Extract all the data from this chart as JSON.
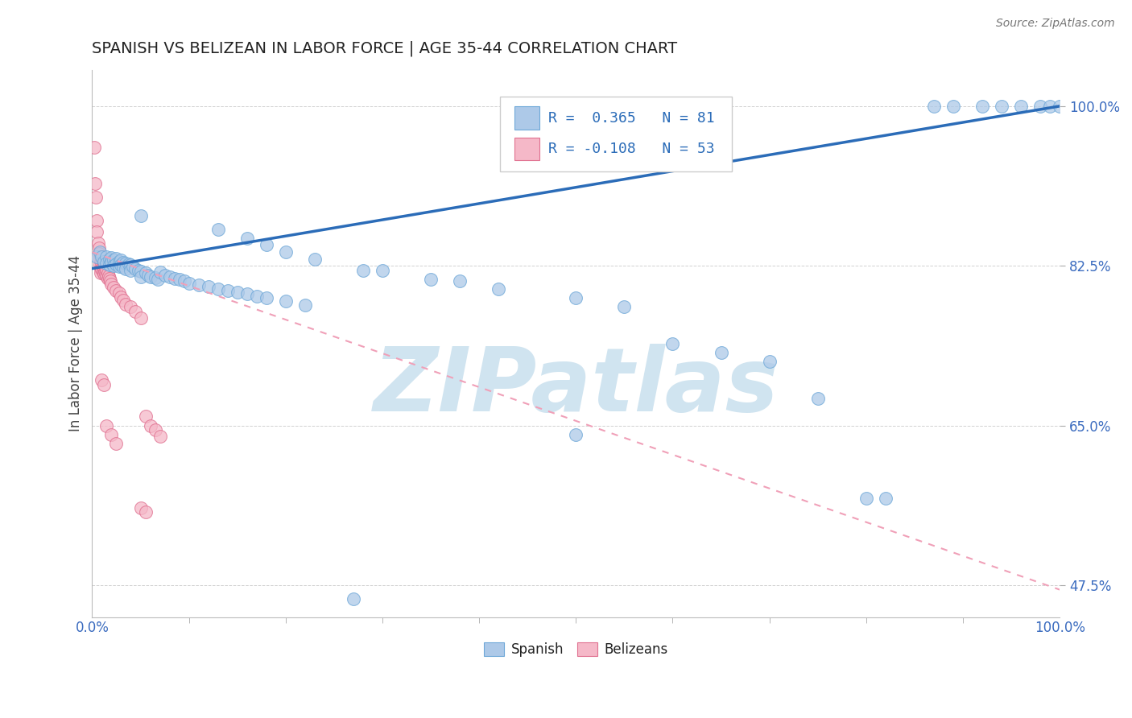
{
  "title": "SPANISH VS BELIZEAN IN LABOR FORCE | AGE 35-44 CORRELATION CHART",
  "source": "Source: ZipAtlas.com",
  "ylabel": "In Labor Force | Age 35-44",
  "xlim": [
    0.0,
    1.0
  ],
  "ylim": [
    0.44,
    1.04
  ],
  "ytick_labeled": [
    0.475,
    0.65,
    0.825,
    1.0
  ],
  "ytick_labeled_str": [
    "47.5%",
    "65.0%",
    "82.5%",
    "100.0%"
  ],
  "R_spanish": 0.365,
  "N_spanish": 81,
  "R_belizean": -0.108,
  "N_belizean": 53,
  "spanish_color": "#adc9e8",
  "spanish_edge": "#6ea8d8",
  "belizean_color": "#f5b8c8",
  "belizean_edge": "#e07090",
  "trend_spanish_color": "#2b6cb8",
  "trend_belizean_color": "#f0a0b8",
  "watermark": "ZIPatlas",
  "watermark_color": "#d0e4f0",
  "legend_title_color": "#2b6cb8",
  "spanish_points": [
    [
      0.005,
      0.835
    ],
    [
      0.008,
      0.84
    ],
    [
      0.01,
      0.835
    ],
    [
      0.012,
      0.83
    ],
    [
      0.015,
      0.835
    ],
    [
      0.015,
      0.828
    ],
    [
      0.018,
      0.832
    ],
    [
      0.018,
      0.826
    ],
    [
      0.02,
      0.834
    ],
    [
      0.02,
      0.829
    ],
    [
      0.022,
      0.831
    ],
    [
      0.022,
      0.825
    ],
    [
      0.025,
      0.833
    ],
    [
      0.025,
      0.827
    ],
    [
      0.028,
      0.83
    ],
    [
      0.028,
      0.824
    ],
    [
      0.03,
      0.831
    ],
    [
      0.03,
      0.826
    ],
    [
      0.032,
      0.829
    ],
    [
      0.032,
      0.823
    ],
    [
      0.035,
      0.828
    ],
    [
      0.035,
      0.822
    ],
    [
      0.038,
      0.827
    ],
    [
      0.04,
      0.826
    ],
    [
      0.04,
      0.82
    ],
    [
      0.042,
      0.824
    ],
    [
      0.045,
      0.822
    ],
    [
      0.048,
      0.82
    ],
    [
      0.05,
      0.819
    ],
    [
      0.05,
      0.813
    ],
    [
      0.055,
      0.817
    ],
    [
      0.058,
      0.815
    ],
    [
      0.06,
      0.813
    ],
    [
      0.065,
      0.812
    ],
    [
      0.068,
      0.81
    ],
    [
      0.07,
      0.818
    ],
    [
      0.075,
      0.815
    ],
    [
      0.08,
      0.813
    ],
    [
      0.085,
      0.811
    ],
    [
      0.09,
      0.81
    ],
    [
      0.095,
      0.808
    ],
    [
      0.1,
      0.806
    ],
    [
      0.11,
      0.804
    ],
    [
      0.12,
      0.802
    ],
    [
      0.13,
      0.8
    ],
    [
      0.14,
      0.798
    ],
    [
      0.15,
      0.796
    ],
    [
      0.16,
      0.794
    ],
    [
      0.17,
      0.792
    ],
    [
      0.18,
      0.79
    ],
    [
      0.2,
      0.786
    ],
    [
      0.22,
      0.782
    ],
    [
      0.05,
      0.88
    ],
    [
      0.13,
      0.865
    ],
    [
      0.16,
      0.855
    ],
    [
      0.18,
      0.848
    ],
    [
      0.2,
      0.84
    ],
    [
      0.23,
      0.832
    ],
    [
      0.28,
      0.82
    ],
    [
      0.3,
      0.82
    ],
    [
      0.35,
      0.81
    ],
    [
      0.38,
      0.808
    ],
    [
      0.42,
      0.8
    ],
    [
      0.5,
      0.79
    ],
    [
      0.55,
      0.78
    ],
    [
      0.5,
      0.64
    ],
    [
      0.6,
      0.74
    ],
    [
      0.65,
      0.73
    ],
    [
      0.7,
      0.72
    ],
    [
      0.75,
      0.68
    ],
    [
      0.8,
      0.57
    ],
    [
      0.82,
      0.57
    ],
    [
      0.87,
      1.0
    ],
    [
      0.89,
      1.0
    ],
    [
      0.92,
      1.0
    ],
    [
      0.94,
      1.0
    ],
    [
      0.96,
      1.0
    ],
    [
      0.98,
      1.0
    ],
    [
      0.99,
      1.0
    ],
    [
      1.0,
      1.0
    ],
    [
      0.27,
      0.46
    ]
  ],
  "belizean_points": [
    [
      0.002,
      0.955
    ],
    [
      0.003,
      0.915
    ],
    [
      0.004,
      0.9
    ],
    [
      0.005,
      0.875
    ],
    [
      0.005,
      0.862
    ],
    [
      0.006,
      0.85
    ],
    [
      0.007,
      0.845
    ],
    [
      0.007,
      0.838
    ],
    [
      0.008,
      0.832
    ],
    [
      0.008,
      0.827
    ],
    [
      0.009,
      0.822
    ],
    [
      0.009,
      0.817
    ],
    [
      0.01,
      0.835
    ],
    [
      0.01,
      0.828
    ],
    [
      0.01,
      0.822
    ],
    [
      0.011,
      0.83
    ],
    [
      0.011,
      0.824
    ],
    [
      0.011,
      0.818
    ],
    [
      0.012,
      0.828
    ],
    [
      0.012,
      0.822
    ],
    [
      0.012,
      0.816
    ],
    [
      0.013,
      0.825
    ],
    [
      0.013,
      0.819
    ],
    [
      0.014,
      0.822
    ],
    [
      0.014,
      0.816
    ],
    [
      0.015,
      0.82
    ],
    [
      0.015,
      0.814
    ],
    [
      0.016,
      0.817
    ],
    [
      0.016,
      0.811
    ],
    [
      0.017,
      0.814
    ],
    [
      0.018,
      0.811
    ],
    [
      0.019,
      0.808
    ],
    [
      0.02,
      0.805
    ],
    [
      0.022,
      0.801
    ],
    [
      0.025,
      0.798
    ],
    [
      0.028,
      0.795
    ],
    [
      0.03,
      0.791
    ],
    [
      0.032,
      0.787
    ],
    [
      0.035,
      0.783
    ],
    [
      0.04,
      0.78
    ],
    [
      0.045,
      0.775
    ],
    [
      0.05,
      0.768
    ],
    [
      0.055,
      0.66
    ],
    [
      0.06,
      0.65
    ],
    [
      0.065,
      0.645
    ],
    [
      0.07,
      0.638
    ],
    [
      0.01,
      0.7
    ],
    [
      0.012,
      0.695
    ],
    [
      0.015,
      0.65
    ],
    [
      0.02,
      0.64
    ],
    [
      0.025,
      0.63
    ],
    [
      0.05,
      0.56
    ],
    [
      0.055,
      0.555
    ]
  ]
}
